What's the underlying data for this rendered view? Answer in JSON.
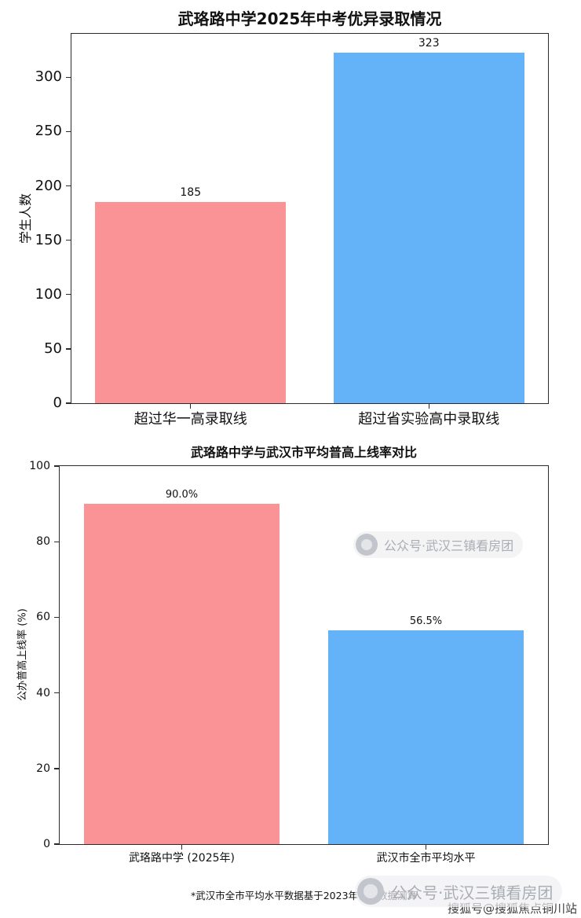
{
  "chart_data": [
    {
      "type": "bar",
      "title": "武珞路中学2025年中考优异录取情况",
      "ylabel": "学生人数",
      "xlabel": "",
      "categories": [
        "超过华一高录取线",
        "超过省实验高中录取线"
      ],
      "values": [
        185,
        323
      ],
      "value_labels": [
        "185",
        "323"
      ],
      "bar_colors": [
        "#fa9396",
        "#64b2f8"
      ],
      "ylim": [
        0,
        340
      ],
      "yticks": [
        0,
        50,
        100,
        150,
        200,
        250,
        300
      ],
      "grid": false,
      "legend": null
    },
    {
      "type": "bar",
      "title": "武珞路中学与武汉市平均普高上线率对比",
      "ylabel": "公办普高上线率 (%)",
      "xlabel": "",
      "categories": [
        "武珞路中学 (2025年)",
        "武汉市全市平均水平"
      ],
      "values": [
        90.0,
        56.5
      ],
      "value_labels": [
        "90.0%",
        "56.5%"
      ],
      "bar_colors": [
        "#fa9396",
        "#64b2f8"
      ],
      "ylim": [
        0,
        100
      ],
      "yticks": [
        0,
        20,
        40,
        60,
        80,
        100
      ],
      "grid": false,
      "legend": null
    }
  ],
  "footnote": "*武汉市全市平均水平数据基于2023年官方数据测算",
  "watermarks": {
    "inline_badge": "公众号·武汉三镇看房团",
    "bottom_badge": "公众号·武汉三镇看房团",
    "bottom_right": "搜狐号@搜狐焦点铜川站"
  }
}
